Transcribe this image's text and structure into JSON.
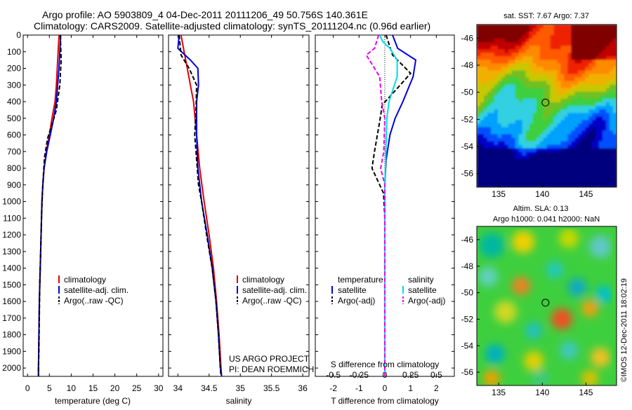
{
  "header": {
    "title_line1": "Argo profile: AO 5903809_4 04-Dec-2011 20111206_49 50.756S 140.361E",
    "title_line2": "Climatology: CARS2009. Satellite-adjusted climatology: synTS_20111204.nc (0.96d earlier)"
  },
  "credit": "US ARGO PROJECT",
  "pi": "PI: DEAN ROEMMICH",
  "stamp": "©IMOS 12-Dec-2011 18:02:19",
  "colors": {
    "climatology": "#e00000",
    "satellite": "#0000dd",
    "argo": "#000000",
    "sat_salinity": "#00dddd",
    "argo_salinity": "#ee00ee"
  },
  "chart_data": [
    {
      "type": "line",
      "xlabel": "temperature (deg C)",
      "ylabel": "",
      "xlim": [
        -1,
        31
      ],
      "ylim": [
        2050,
        0
      ],
      "xticks": [
        "0",
        "5",
        "10",
        "15",
        "20",
        "25",
        "30"
      ],
      "yticks": [
        "0",
        "100",
        "200",
        "300",
        "400",
        "500",
        "600",
        "700",
        "800",
        "900",
        "1000",
        "1100",
        "1200",
        "1300",
        "1400",
        "1500",
        "1600",
        "1700",
        "1800",
        "1900",
        "2000"
      ],
      "legend": [
        "climatology",
        "satellite-adj. clim.",
        "Argo(..raw -QC)"
      ],
      "legend_loc": "lower-right",
      "series": [
        {
          "name": "climatology",
          "points": [
            [
              7.2,
              0
            ],
            [
              7.0,
              100
            ],
            [
              6.8,
              200
            ],
            [
              6.6,
              300
            ],
            [
              6.3,
              400
            ],
            [
              5.6,
              500
            ],
            [
              5.0,
              600
            ],
            [
              4.3,
              700
            ],
            [
              3.8,
              800
            ],
            [
              3.5,
              900
            ],
            [
              3.3,
              1000
            ],
            [
              3.1,
              1200
            ],
            [
              2.9,
              1400
            ],
            [
              2.7,
              1600
            ],
            [
              2.6,
              1800
            ],
            [
              2.5,
              2000
            ],
            [
              2.5,
              2050
            ]
          ]
        },
        {
          "name": "satellite-adj. clim.",
          "points": [
            [
              7.6,
              0
            ],
            [
              7.4,
              100
            ],
            [
              7.2,
              200
            ],
            [
              6.9,
              300
            ],
            [
              6.6,
              400
            ],
            [
              6.0,
              500
            ],
            [
              5.2,
              600
            ],
            [
              4.4,
              700
            ],
            [
              3.8,
              800
            ],
            [
              3.5,
              900
            ],
            [
              3.3,
              1000
            ],
            [
              3.1,
              1200
            ],
            [
              2.9,
              1400
            ],
            [
              2.7,
              1600
            ],
            [
              2.6,
              1800
            ],
            [
              2.5,
              2000
            ],
            [
              2.5,
              2050
            ]
          ]
        },
        {
          "name": "Argo(..raw -QC)",
          "points": [
            [
              7.5,
              0
            ],
            [
              7.7,
              150
            ],
            [
              7.4,
              300
            ],
            [
              6.6,
              450
            ],
            [
              5.8,
              520
            ],
            [
              4.6,
              620
            ],
            [
              3.9,
              730
            ],
            [
              3.6,
              850
            ],
            [
              3.4,
              950
            ],
            [
              3.2,
              1100
            ],
            [
              3.0,
              1300
            ],
            [
              2.8,
              1500
            ],
            [
              2.7,
              1700
            ],
            [
              2.6,
              1900
            ],
            [
              2.5,
              2000
            ],
            [
              2.5,
              2050
            ]
          ]
        }
      ]
    },
    {
      "type": "line",
      "xlabel": "salinity",
      "xlim": [
        33.85,
        36.1
      ],
      "ylim": [
        2050,
        0
      ],
      "xticks": [
        "34",
        "34.5",
        "35",
        "35.5",
        "36"
      ],
      "legend": [
        "climatology",
        "satellite-adj. clim.",
        "Argo(..raw -QC)"
      ],
      "legend_loc": "lower-right",
      "credit_loc": "bottom-right",
      "series": [
        {
          "name": "climatology",
          "points": [
            [
              34.05,
              0
            ],
            [
              34.1,
              100
            ],
            [
              34.15,
              200
            ],
            [
              34.2,
              300
            ],
            [
              34.25,
              400
            ],
            [
              34.3,
              600
            ],
            [
              34.35,
              800
            ],
            [
              34.42,
              1000
            ],
            [
              34.5,
              1200
            ],
            [
              34.57,
              1400
            ],
            [
              34.62,
              1600
            ],
            [
              34.66,
              1800
            ],
            [
              34.69,
              2000
            ],
            [
              34.7,
              2050
            ]
          ]
        },
        {
          "name": "satellite-adj. clim.",
          "points": [
            [
              34.02,
              0
            ],
            [
              34.0,
              80
            ],
            [
              34.2,
              150
            ],
            [
              34.32,
              200
            ],
            [
              34.33,
              300
            ],
            [
              34.3,
              400
            ],
            [
              34.3,
              600
            ],
            [
              34.32,
              800
            ],
            [
              34.38,
              1000
            ],
            [
              34.47,
              1200
            ],
            [
              34.55,
              1400
            ],
            [
              34.61,
              1600
            ],
            [
              34.65,
              1800
            ],
            [
              34.68,
              2000
            ],
            [
              34.7,
              2050
            ]
          ]
        },
        {
          "name": "Argo(..raw -QC)",
          "points": [
            [
              34.02,
              0
            ],
            [
              34.05,
              120
            ],
            [
              34.18,
              200
            ],
            [
              34.3,
              300
            ],
            [
              34.29,
              450
            ],
            [
              34.27,
              600
            ],
            [
              34.3,
              750
            ],
            [
              34.33,
              900
            ],
            [
              34.38,
              1000
            ],
            [
              34.46,
              1200
            ],
            [
              34.55,
              1400
            ],
            [
              34.61,
              1600
            ],
            [
              34.65,
              1800
            ],
            [
              34.68,
              2000
            ],
            [
              34.69,
              2050
            ]
          ]
        }
      ]
    },
    {
      "type": "line",
      "xlabel": "T difference from climatology",
      "xlabel_top": "S difference from climatology",
      "xlim": [
        -2.7,
        2.7
      ],
      "ylim": [
        2050,
        0
      ],
      "xticks": [
        "-2",
        "-1",
        "0",
        "1",
        "2"
      ],
      "xticks_S": [
        "-0.5",
        "-0.25",
        "0",
        "0.25",
        "0.5"
      ],
      "legend_temperature_title": "temperature",
      "legend_salinity_title": "salinity",
      "legend": [
        "satellite",
        "Argo(-adj)",
        "satellite",
        "Argo(-adj)"
      ],
      "legend_loc": "lower",
      "series": [
        {
          "name": "satellite",
          "group": "temperature",
          "points": [
            [
              0.3,
              0
            ],
            [
              0.5,
              80
            ],
            [
              1.2,
              150
            ],
            [
              1.1,
              250
            ],
            [
              0.7,
              400
            ],
            [
              0.4,
              500
            ],
            [
              0.2,
              600
            ],
            [
              0.05,
              750
            ],
            [
              0.0,
              900
            ],
            [
              0.0,
              1200
            ],
            [
              0.0,
              2050
            ]
          ]
        },
        {
          "name": "Argo(-adj)",
          "group": "temperature",
          "points": [
            [
              0.05,
              0
            ],
            [
              0.3,
              120
            ],
            [
              1.0,
              230
            ],
            [
              0.6,
              300
            ],
            [
              -0.1,
              420
            ],
            [
              -0.2,
              520
            ],
            [
              -0.4,
              700
            ],
            [
              -0.5,
              800
            ],
            [
              -0.2,
              900
            ],
            [
              -0.05,
              950
            ],
            [
              0.0,
              1100
            ],
            [
              0.0,
              2050
            ]
          ]
        },
        {
          "name": "satellite",
          "group": "salinity",
          "points": [
            [
              -0.05,
              0
            ],
            [
              -0.02,
              40
            ],
            [
              0.05,
              80
            ],
            [
              0.12,
              150
            ],
            [
              0.12,
              250
            ],
            [
              0.04,
              400
            ],
            [
              0.02,
              500
            ],
            [
              0.01,
              700
            ],
            [
              0.0,
              900
            ],
            [
              0.0,
              2050
            ]
          ]
        },
        {
          "name": "Argo(-adj)",
          "group": "salinity",
          "points": [
            [
              -0.06,
              0
            ],
            [
              -0.1,
              80
            ],
            [
              -0.18,
              120
            ],
            [
              -0.05,
              250
            ],
            [
              -0.03,
              400
            ],
            [
              0.0,
              500
            ],
            [
              -0.01,
              700
            ],
            [
              -0.04,
              800
            ],
            [
              0.0,
              900
            ],
            [
              0.0,
              2050
            ]
          ]
        }
      ]
    },
    {
      "type": "heatmap",
      "title": "sat. SST: 7.67 Argo: 7.37",
      "xlim": [
        132.5,
        148.5
      ],
      "ylim": [
        -57,
        -45
      ],
      "xticks": [
        "135",
        "140",
        "145"
      ],
      "yticks": [
        "-46",
        "-48",
        "-50",
        "-52",
        "-54",
        "-56"
      ],
      "marker": [
        140.361,
        -50.756
      ]
    },
    {
      "type": "heatmap",
      "title": "Altim. SLA: 0.13",
      "subtitle": "Argo h1000: 0.041 h2000: NaN",
      "xlim": [
        132.5,
        148.5
      ],
      "ylim": [
        -57,
        -45
      ],
      "xticks": [
        "135",
        "140",
        "145"
      ],
      "yticks": [
        "-46",
        "-48",
        "-50",
        "-52",
        "-54",
        "-56"
      ],
      "marker": [
        140.361,
        -50.756
      ]
    }
  ]
}
